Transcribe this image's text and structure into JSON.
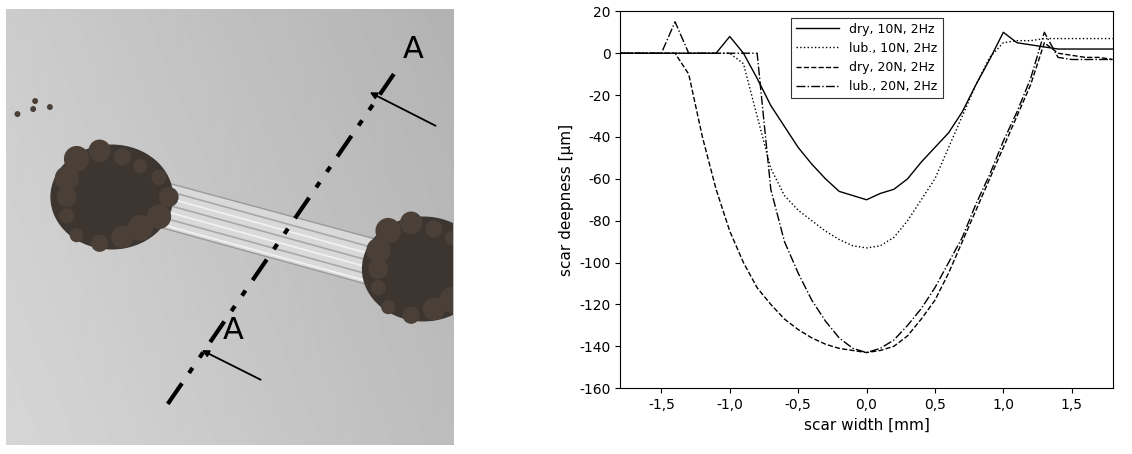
{
  "chart_data": {
    "type": "line",
    "x_label": "scar width [mm]",
    "y_label": "scar deepness [µm]",
    "x": [
      -1.8,
      -1.7,
      -1.6,
      -1.5,
      -1.4,
      -1.3,
      -1.2,
      -1.1,
      -1.0,
      -0.9,
      -0.8,
      -0.7,
      -0.6,
      -0.5,
      -0.4,
      -0.3,
      -0.2,
      -0.1,
      0.0,
      0.1,
      0.2,
      0.3,
      0.4,
      0.5,
      0.6,
      0.7,
      0.8,
      0.9,
      1.0,
      1.1,
      1.2,
      1.3,
      1.4,
      1.5,
      1.6,
      1.7,
      1.8
    ],
    "series": [
      {
        "name": "dry, 10N, 2Hz",
        "color": "#000000",
        "line_style": "solid",
        "values": [
          0,
          0,
          0,
          0,
          0,
          0,
          0,
          0,
          8,
          0,
          -12,
          -25,
          -35,
          -45,
          -53,
          -60,
          -66,
          -68,
          -70,
          -67,
          -65,
          -60,
          -52,
          -45,
          -38,
          -28,
          -15,
          -3,
          10,
          5,
          4,
          3,
          2,
          2,
          2,
          2,
          2
        ]
      },
      {
        "name": "lub., 10N, 2Hz",
        "color": "#000000",
        "line_style": "dotted",
        "values": [
          0,
          0,
          0,
          0,
          0,
          0,
          0,
          0,
          0,
          -5,
          -30,
          -55,
          -68,
          -75,
          -80,
          -85,
          -89,
          -92,
          -93,
          -92,
          -88,
          -80,
          -70,
          -60,
          -45,
          -30,
          -15,
          -2,
          5,
          6,
          6,
          7,
          7,
          7,
          7,
          7,
          7
        ]
      },
      {
        "name": "dry, 20N, 2Hz",
        "color": "#000000",
        "line_style": "dashed",
        "values": [
          0,
          0,
          0,
          0,
          0,
          -10,
          -40,
          -65,
          -85,
          -100,
          -112,
          -120,
          -127,
          -132,
          -136,
          -139,
          -141,
          -142,
          -143,
          -142,
          -140,
          -135,
          -127,
          -118,
          -105,
          -90,
          -75,
          -60,
          -45,
          -30,
          -15,
          5,
          0,
          -1,
          -2,
          -2,
          -3
        ]
      },
      {
        "name": "lub., 20N, 2Hz",
        "color": "#000000",
        "line_style": "dashdot",
        "values": [
          0,
          0,
          0,
          0,
          15,
          0,
          0,
          0,
          0,
          0,
          0,
          -65,
          -90,
          -105,
          -118,
          -128,
          -136,
          -141,
          -143,
          -141,
          -137,
          -130,
          -122,
          -112,
          -100,
          -88,
          -72,
          -58,
          -42,
          -28,
          -12,
          10,
          -2,
          -3,
          -3,
          -3,
          -3
        ]
      }
    ],
    "xlim": [
      -1.8,
      1.8
    ],
    "xticks": [
      {
        "value": -1.5,
        "label": "-1,5"
      },
      {
        "value": -1.0,
        "label": "-1,0"
      },
      {
        "value": -0.5,
        "label": "-0,5"
      },
      {
        "value": 0.0,
        "label": "0,0"
      },
      {
        "value": 0.5,
        "label": "0,5"
      },
      {
        "value": 1.0,
        "label": "1,0"
      },
      {
        "value": 1.5,
        "label": "1,5"
      }
    ],
    "ylim": [
      -160,
      20
    ],
    "yticks": [
      -160,
      -140,
      -120,
      -100,
      -80,
      -60,
      -40,
      -20,
      0,
      20
    ],
    "legend": "upper center"
  },
  "photo": {
    "section_labels": [
      "A",
      "A"
    ]
  }
}
